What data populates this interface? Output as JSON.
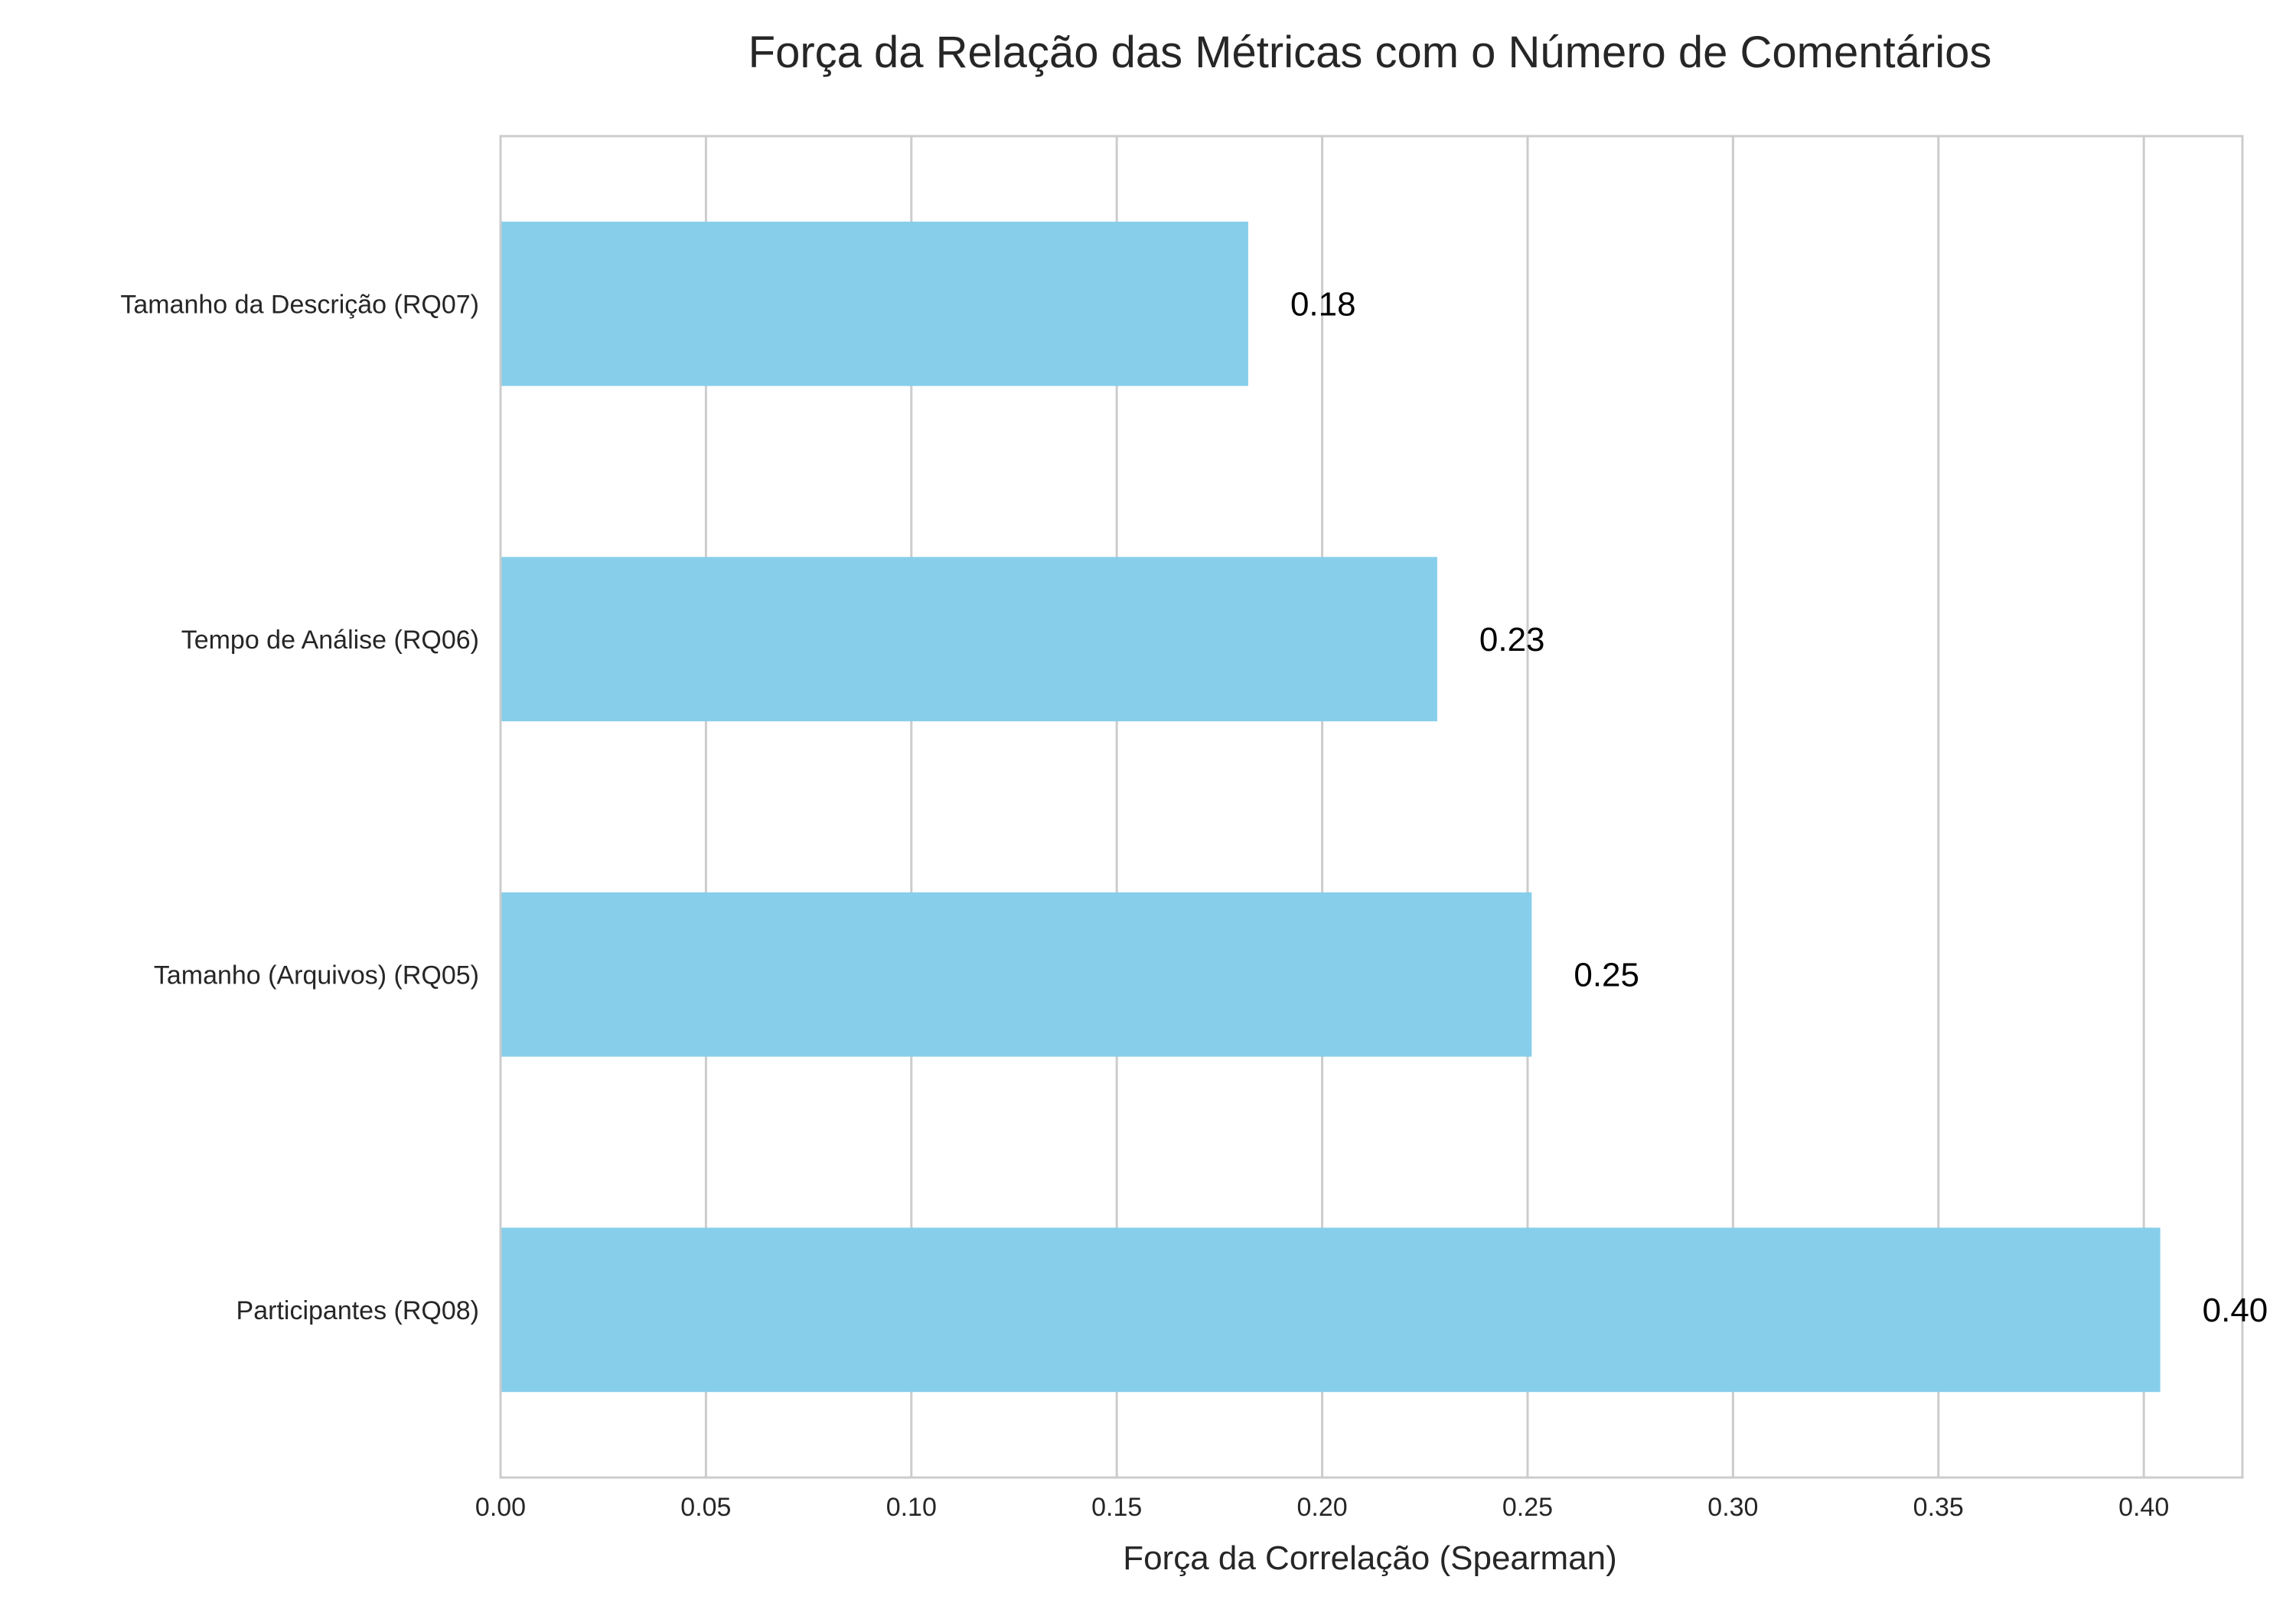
{
  "chart_data": {
    "type": "bar",
    "orientation": "horizontal",
    "title": "Força da Relação das Métricas com o Número de Comentários",
    "xlabel": "Força da Correlação (Spearman)",
    "ylabel": "",
    "categories": [
      "Tamanho da Descrição (RQ07)",
      "Tempo de Análise (RQ06)",
      "Tamanho (Arquivos) (RQ05)",
      "Participantes (RQ08)"
    ],
    "values": [
      0.182,
      0.228,
      0.251,
      0.404
    ],
    "data_labels": [
      "0.18",
      "0.23",
      "0.25",
      "0.40"
    ],
    "xlim": [
      0,
      0.424
    ],
    "xticks": [
      0.0,
      0.05,
      0.1,
      0.15,
      0.2,
      0.25,
      0.3,
      0.35,
      0.4
    ],
    "xtick_labels": [
      "0.00",
      "0.05",
      "0.10",
      "0.15",
      "0.20",
      "0.25",
      "0.30",
      "0.35",
      "0.40"
    ],
    "grid": "vertical",
    "colors": {
      "bar": "#87CEEB",
      "grid": "#cccccc",
      "spine": "#cccccc",
      "text": "#262626",
      "label": "#000000"
    }
  }
}
